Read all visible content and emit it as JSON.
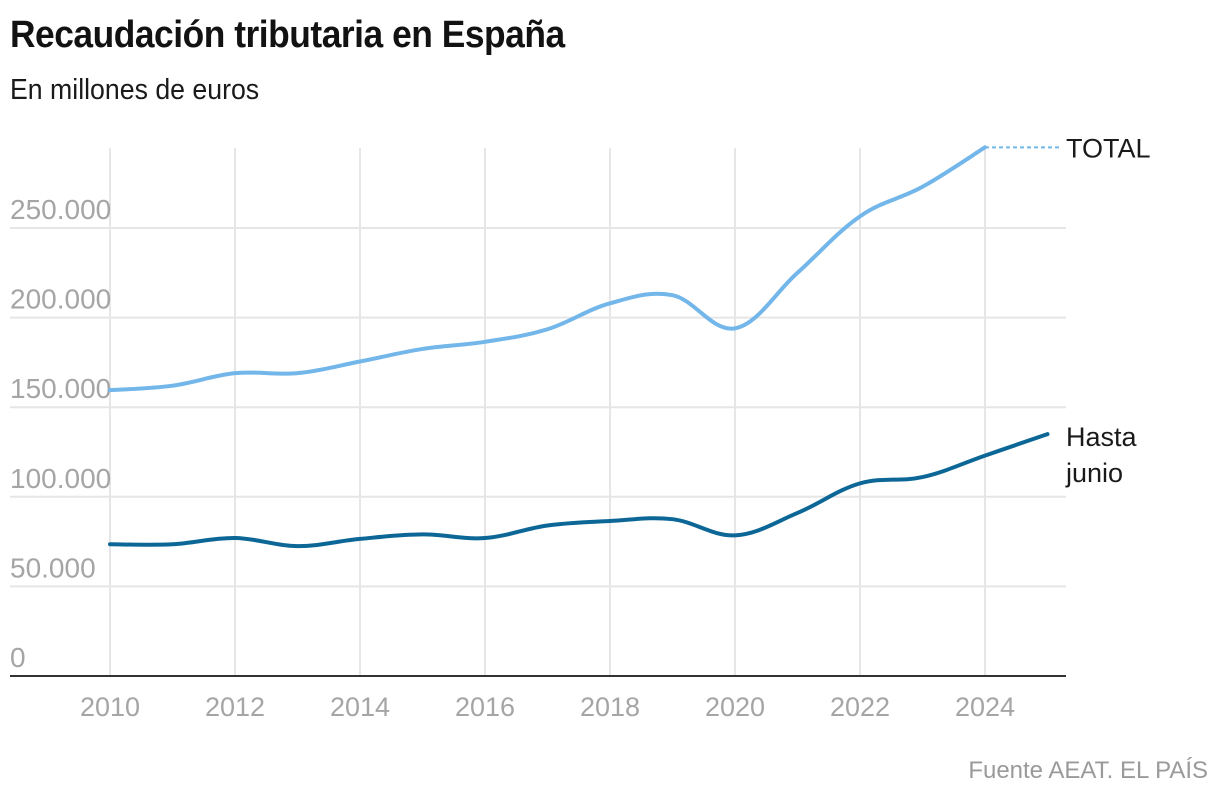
{
  "header": {
    "title": "Recaudación tributaria en España",
    "subtitle": "En millones de euros"
  },
  "footer": {
    "source": "Fuente AEAT. EL PAÍS"
  },
  "colors": {
    "total": "#72b6ea",
    "hasta_junio": "#0c6797",
    "grid": "#e6e6e6",
    "axis": "#333333",
    "tick_text": "#a5a5a5"
  },
  "chart_data": {
    "type": "line",
    "title": "Recaudación tributaria en España",
    "subtitle": "En millones de euros",
    "xlabel": "",
    "ylabel": "",
    "xlim": [
      2009,
      2026
    ],
    "ylim": [
      0,
      295000
    ],
    "grid": true,
    "yticks": [
      0,
      50000,
      100000,
      150000,
      200000,
      250000
    ],
    "ytick_labels": [
      "0",
      "50.000",
      "100.000",
      "150.000",
      "200.000",
      "250.000"
    ],
    "xticks": [
      2010,
      2012,
      2014,
      2016,
      2018,
      2020,
      2022,
      2024
    ],
    "xtick_labels": [
      "2010",
      "2012",
      "2014",
      "2016",
      "2018",
      "2020",
      "2022",
      "2024"
    ],
    "legend": "inline-right",
    "series": [
      {
        "name": "TOTAL",
        "label": "TOTAL",
        "x": [
          2010,
          2011,
          2012,
          2013,
          2014,
          2015,
          2016,
          2017,
          2018,
          2019,
          2020,
          2021,
          2022,
          2023,
          2024
        ],
        "values": [
          159500,
          162000,
          169000,
          169000,
          175500,
          182500,
          186500,
          193500,
          208000,
          212500,
          194000,
          225000,
          256500,
          273000,
          295000
        ]
      },
      {
        "name": "Hasta junio",
        "label": "Hasta junio",
        "x": [
          2010,
          2011,
          2012,
          2013,
          2014,
          2015,
          2016,
          2017,
          2018,
          2019,
          2020,
          2021,
          2022,
          2023,
          2024,
          2025
        ],
        "values": [
          73500,
          73500,
          77000,
          72500,
          76500,
          79000,
          77000,
          84000,
          86500,
          87500,
          78500,
          91000,
          107500,
          111000,
          123000,
          135000
        ]
      }
    ],
    "annotations": [
      "TOTAL",
      "Hasta junio"
    ],
    "source": "Fuente AEAT. EL PAÍS"
  }
}
